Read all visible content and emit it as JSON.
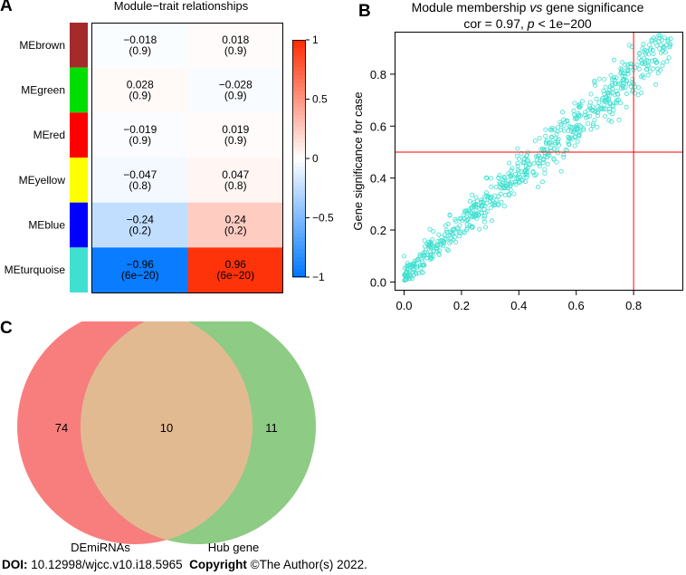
{
  "panel_labels": {
    "a": "A",
    "b": "B",
    "c": "C"
  },
  "chart_data": [
    {
      "type": "heatmap",
      "title": "Module−trait relationships",
      "rows": [
        {
          "module": "MEbrown",
          "swatch": "#a52a2a",
          "cells": [
            {
              "cor": "−0.018",
              "p": "(0.9)",
              "value": -0.018
            },
            {
              "cor": "0.018",
              "p": "(0.9)",
              "value": 0.018
            }
          ]
        },
        {
          "module": "MEgreen",
          "swatch": "#00dd00",
          "cells": [
            {
              "cor": "0.028",
              "p": "(0.9)",
              "value": 0.028
            },
            {
              "cor": "−0.028",
              "p": "(0.9)",
              "value": -0.028
            }
          ]
        },
        {
          "module": "MEred",
          "swatch": "#ff0000",
          "cells": [
            {
              "cor": "−0.019",
              "p": "(0.9)",
              "value": -0.019
            },
            {
              "cor": "0.019",
              "p": "(0.9)",
              "value": 0.019
            }
          ]
        },
        {
          "module": "MEyellow",
          "swatch": "#ffff00",
          "cells": [
            {
              "cor": "−0.047",
              "p": "(0.8)",
              "value": -0.047
            },
            {
              "cor": "0.047",
              "p": "(0.8)",
              "value": 0.047
            }
          ]
        },
        {
          "module": "MEblue",
          "swatch": "#0000ff",
          "cells": [
            {
              "cor": "−0.24",
              "p": "(0.2)",
              "value": -0.24
            },
            {
              "cor": "0.24",
              "p": "(0.2)",
              "value": 0.24
            }
          ]
        },
        {
          "module": "MEturquoise",
          "swatch": "#40e0d0",
          "cells": [
            {
              "cor": "−0.96",
              "p": "(6e−20)",
              "value": -0.96
            },
            {
              "cor": "0.96",
              "p": "(6e−20)",
              "value": 0.96
            }
          ]
        }
      ],
      "colorbar": {
        "range": [
          -1,
          1
        ],
        "ticks": [
          {
            "value": 1,
            "label": "1"
          },
          {
            "value": 0.5,
            "label": "0.5"
          },
          {
            "value": 0,
            "label": "0"
          },
          {
            "value": -0.5,
            "label": "−0.5"
          },
          {
            "value": -1,
            "label": "−1"
          }
        ],
        "high_color": "#ff2a00",
        "low_color": "#0077ff",
        "mid_color": "#ffffff"
      }
    },
    {
      "type": "scatter",
      "title_line1_pre": "Module membership ",
      "title_line1_vs": "vs",
      "title_line1_post": " gene significance",
      "title_line2_pre": "cor = 0.97, ",
      "title_line2_p": "p",
      "title_line2_post": " < 1e−200",
      "xlabel": "",
      "ylabel": "Gene significance for case",
      "xlim": [
        -0.03,
        0.97
      ],
      "ylim": [
        -0.03,
        0.96
      ],
      "xticks": [
        {
          "value": 0.0,
          "label": "0.0"
        },
        {
          "value": 0.2,
          "label": "0.2"
        },
        {
          "value": 0.4,
          "label": "0.4"
        },
        {
          "value": 0.6,
          "label": "0.6"
        },
        {
          "value": 0.8,
          "label": "0.8"
        }
      ],
      "yticks": [
        {
          "value": 0.0,
          "label": "0.0"
        },
        {
          "value": 0.2,
          "label": "0.2"
        },
        {
          "value": 0.4,
          "label": "0.4"
        },
        {
          "value": 0.6,
          "label": "0.6"
        },
        {
          "value": 0.8,
          "label": "0.8"
        }
      ],
      "vline": 0.8,
      "hline": 0.5,
      "point_color": "#40e0d0",
      "line_color": "#ff0000",
      "n_points": 700,
      "point_trend": {
        "slope": 0.97,
        "intercept": 0.025,
        "spread": 0.045,
        "x_range": [
          0.0,
          0.93
        ]
      }
    },
    {
      "type": "venn",
      "sets": [
        {
          "name": "DEmiRNAs",
          "only_count": "74",
          "color": "#f87e7e"
        },
        {
          "name": "Hub gene",
          "only_count": "11",
          "color": "#8ecb84"
        }
      ],
      "intersection_count": "10",
      "intersection_color": "#e2ba92"
    }
  ],
  "footer": {
    "doi_label": "DOI:",
    "doi_value": "10.12998/wjcc.v10.i18.5965",
    "copyright_label": "Copyright",
    "copyright_value": "©The Author(s) 2022."
  }
}
